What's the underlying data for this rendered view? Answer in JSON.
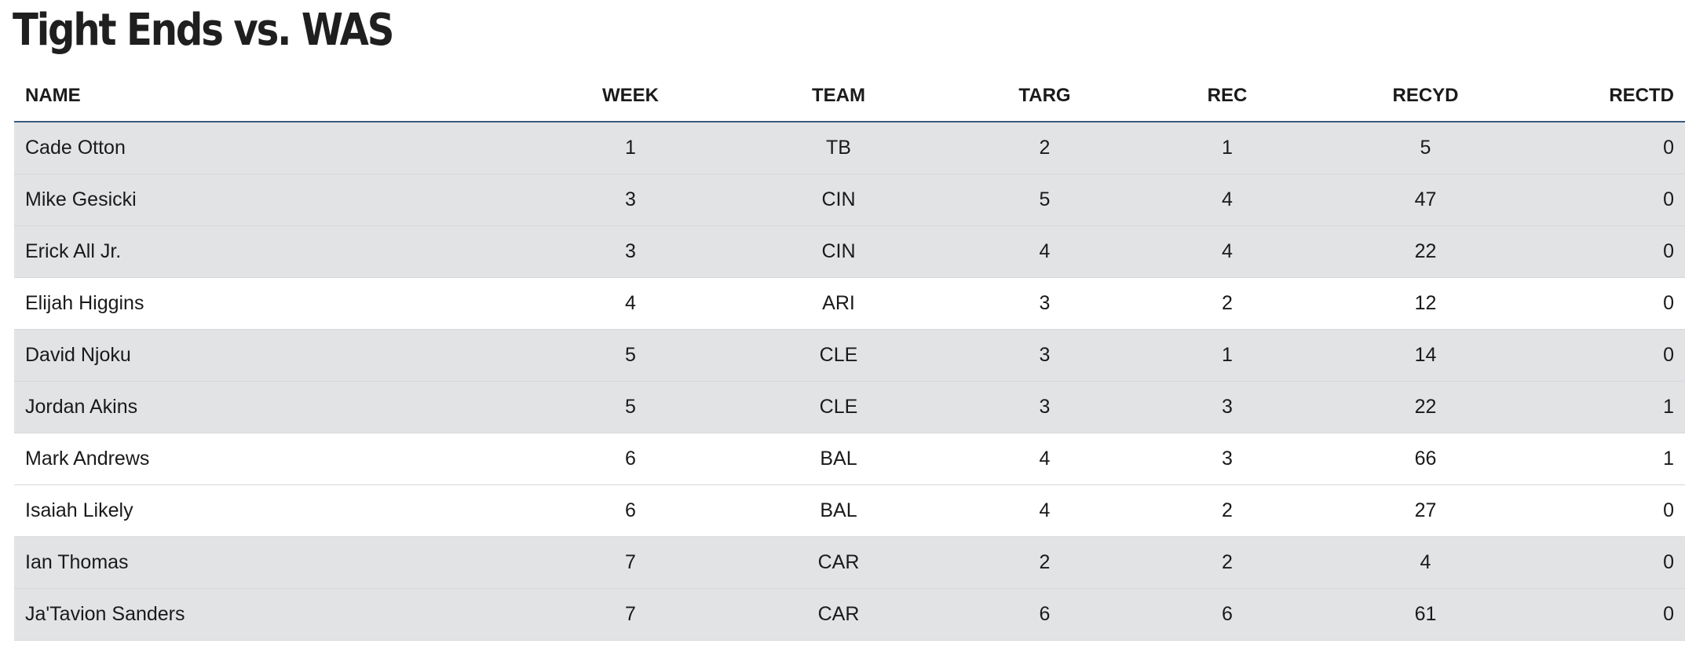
{
  "title": "Tight Ends vs. WAS",
  "table": {
    "headers": [
      "NAME",
      "WEEK",
      "TEAM",
      "TARG",
      "REC",
      "RECYD",
      "RECTD"
    ],
    "rows": [
      {
        "name": "Cade Otton",
        "week": "1",
        "team": "TB",
        "targ": "2",
        "rec": "1",
        "recyd": "5",
        "rectd": "0",
        "shaded": true
      },
      {
        "name": "Mike Gesicki",
        "week": "3",
        "team": "CIN",
        "targ": "5",
        "rec": "4",
        "recyd": "47",
        "rectd": "0",
        "shaded": true
      },
      {
        "name": "Erick All Jr.",
        "week": "3",
        "team": "CIN",
        "targ": "4",
        "rec": "4",
        "recyd": "22",
        "rectd": "0",
        "shaded": true
      },
      {
        "name": "Elijah Higgins",
        "week": "4",
        "team": "ARI",
        "targ": "3",
        "rec": "2",
        "recyd": "12",
        "rectd": "0",
        "shaded": false
      },
      {
        "name": "David Njoku",
        "week": "5",
        "team": "CLE",
        "targ": "3",
        "rec": "1",
        "recyd": "14",
        "rectd": "0",
        "shaded": true
      },
      {
        "name": "Jordan Akins",
        "week": "5",
        "team": "CLE",
        "targ": "3",
        "rec": "3",
        "recyd": "22",
        "rectd": "1",
        "shaded": true
      },
      {
        "name": "Mark Andrews",
        "week": "6",
        "team": "BAL",
        "targ": "4",
        "rec": "3",
        "recyd": "66",
        "rectd": "1",
        "shaded": false
      },
      {
        "name": "Isaiah Likely",
        "week": "6",
        "team": "BAL",
        "targ": "4",
        "rec": "2",
        "recyd": "27",
        "rectd": "0",
        "shaded": false
      },
      {
        "name": "Ian Thomas",
        "week": "7",
        "team": "CAR",
        "targ": "2",
        "rec": "2",
        "recyd": "4",
        "rectd": "0",
        "shaded": true
      },
      {
        "name": "Ja'Tavion Sanders",
        "week": "7",
        "team": "CAR",
        "targ": "6",
        "rec": "6",
        "recyd": "61",
        "rectd": "0",
        "shaded": true
      }
    ]
  },
  "colors": {
    "shaded_row": "#e2e3e5",
    "header_rule": "#3a5a7c"
  }
}
